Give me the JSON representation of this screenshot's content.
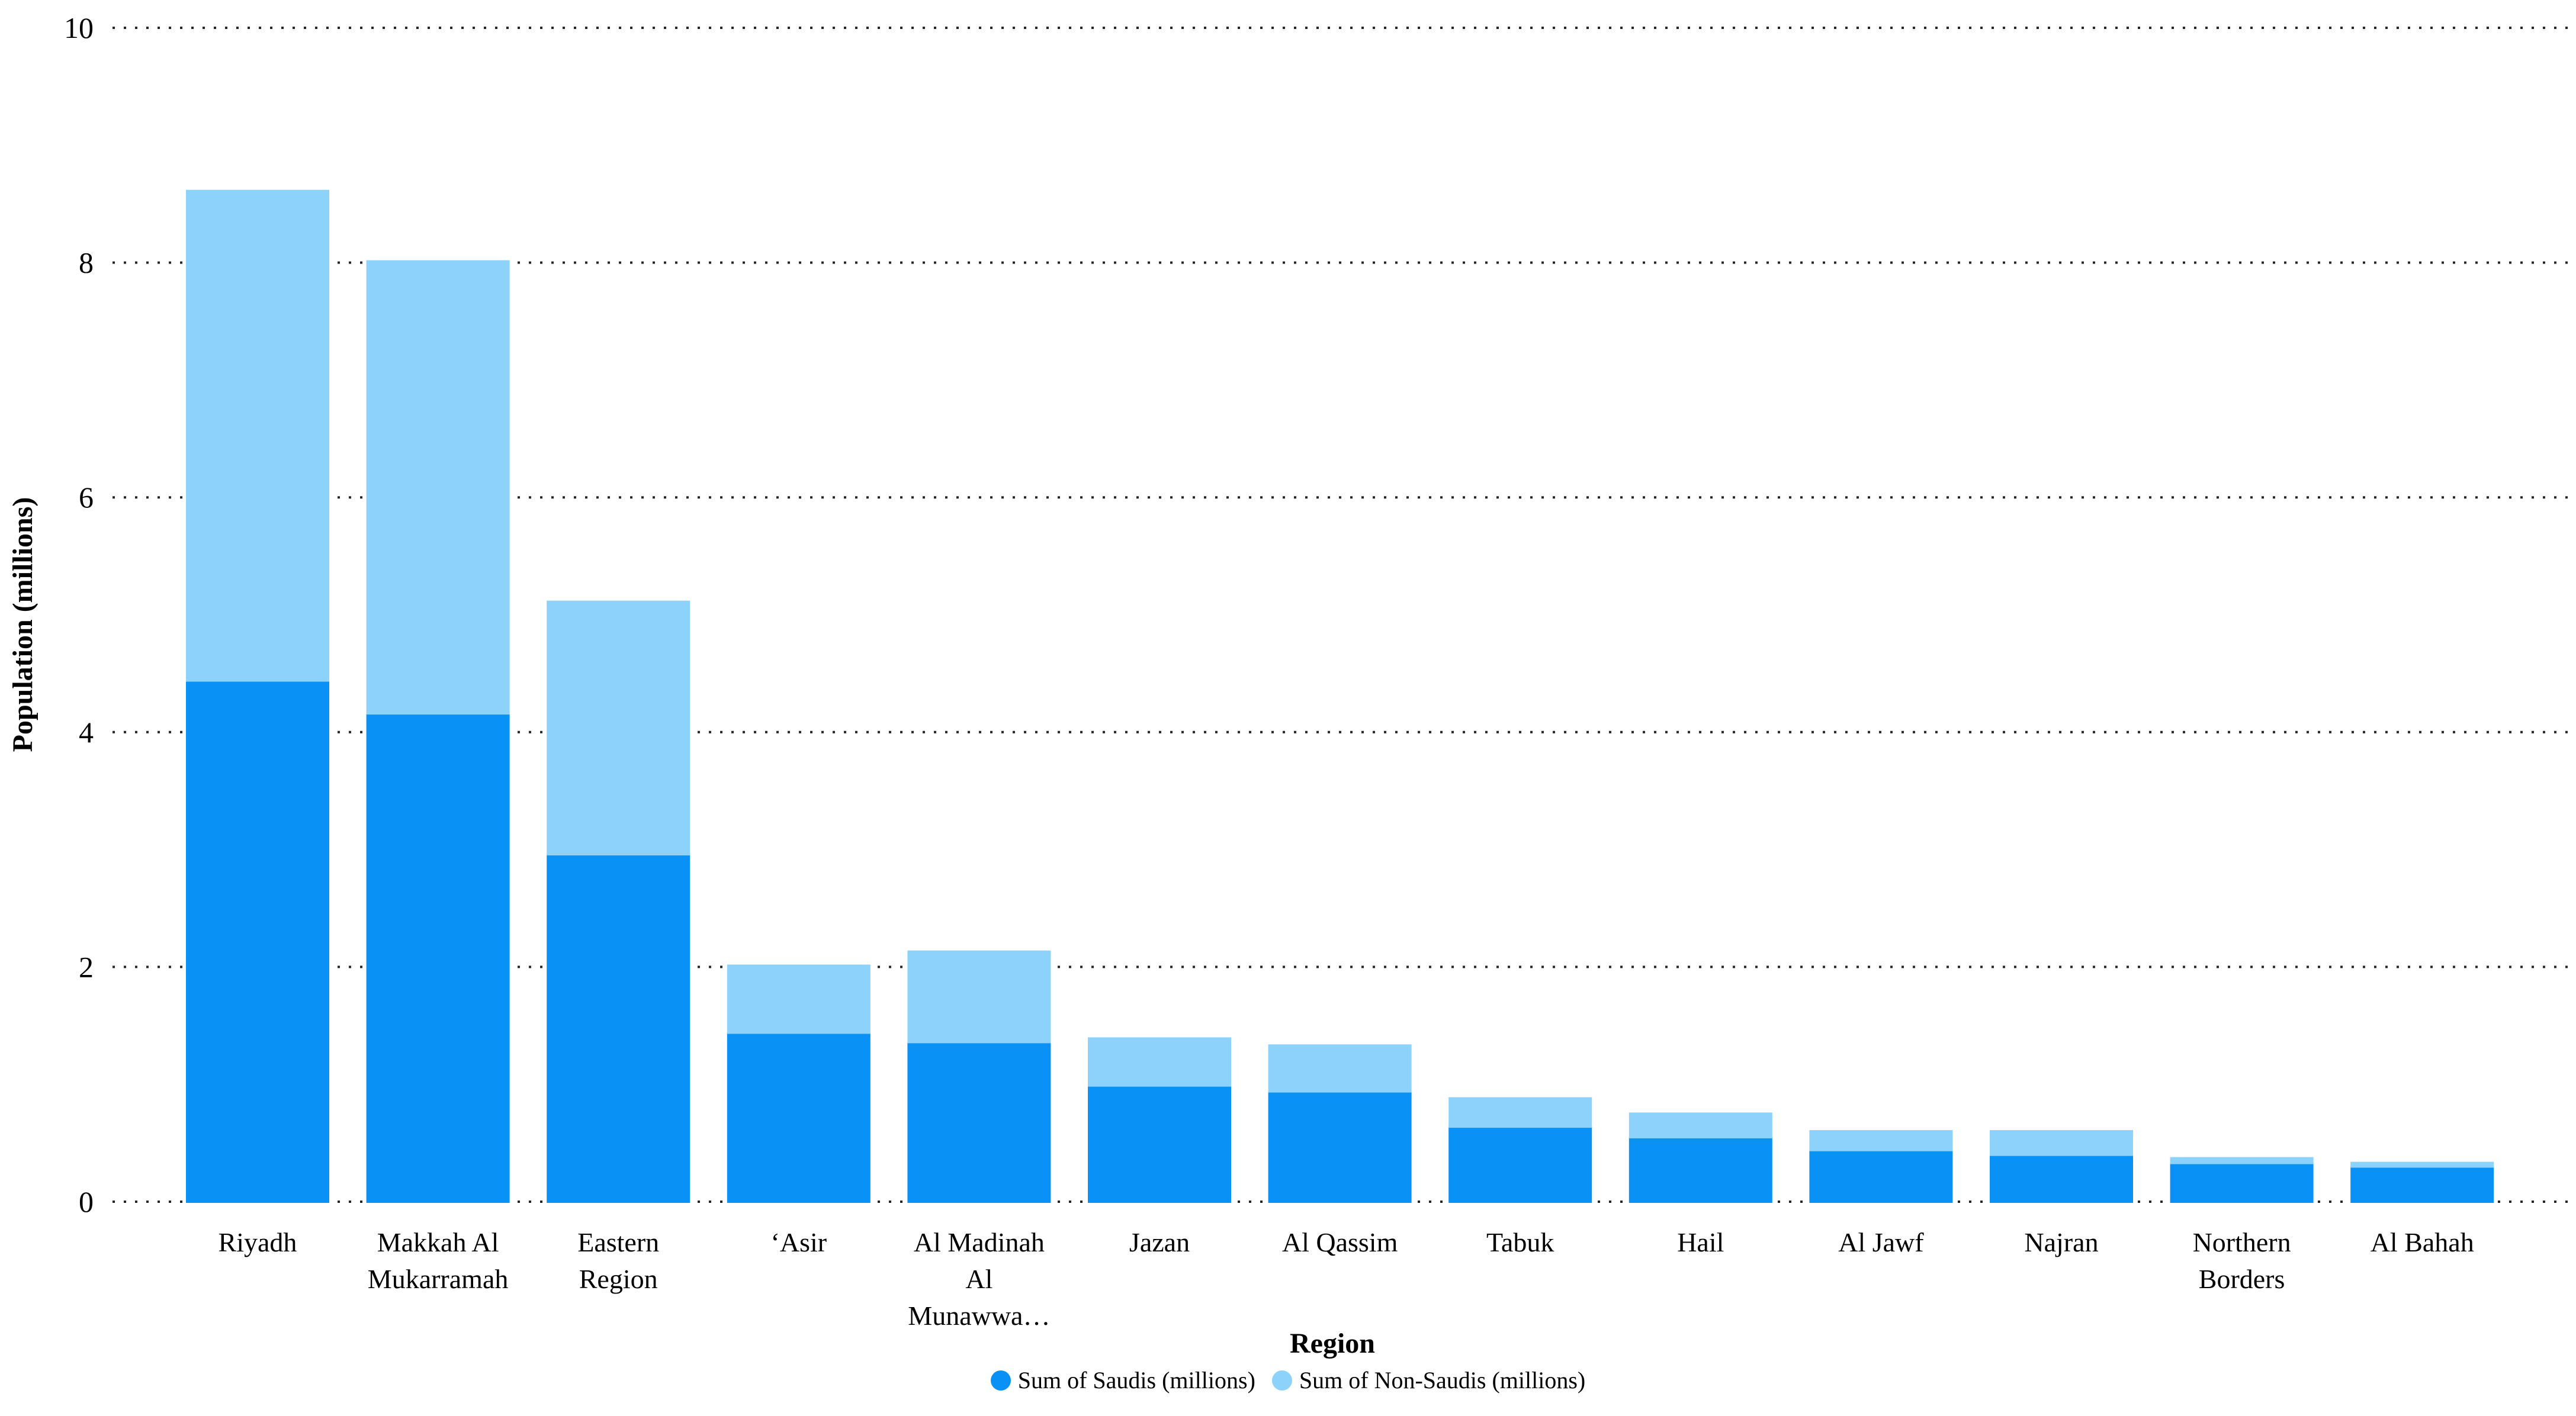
{
  "chart_data": {
    "type": "bar",
    "stacked": true,
    "xlabel": "Region",
    "ylabel": "Population (millions)",
    "ylim": [
      0,
      10
    ],
    "yticks": [
      0,
      2,
      4,
      6,
      8,
      10
    ],
    "grid": "horizontal-dotted",
    "grid_color": "#262626",
    "background": "#ffffff",
    "legend_position": "bottom-center",
    "categories": [
      "Riyadh",
      "Makkah Al Mukarramah",
      "Eastern Region",
      "‘Asir",
      "Al Madinah Al Munawwa…",
      "Jazan",
      "Al Qassim",
      "Tabuk",
      "Hail",
      "Al Jawf",
      "Najran",
      "Northern Borders",
      "Al Bahah"
    ],
    "category_label_lines": [
      [
        "Riyadh"
      ],
      [
        "Makkah Al",
        "Mukarramah"
      ],
      [
        "Eastern",
        "Region"
      ],
      [
        "‘Asir"
      ],
      [
        "Al Madinah",
        "Al",
        "Munawwa…"
      ],
      [
        "Jazan"
      ],
      [
        "Al Qassim"
      ],
      [
        "Tabuk"
      ],
      [
        "Hail"
      ],
      [
        "Al Jawf"
      ],
      [
        "Najran"
      ],
      [
        "Northern",
        "Borders"
      ],
      [
        "Al Bahah"
      ]
    ],
    "series": [
      {
        "name": "Sum of Saudis (millions)",
        "color": "#0991F5",
        "values": [
          4.44,
          4.16,
          2.96,
          1.44,
          1.36,
          0.99,
          0.94,
          0.64,
          0.55,
          0.44,
          0.4,
          0.33,
          0.3
        ]
      },
      {
        "name": "Sum of Non-Saudis (millions)",
        "color": "#8CD2FB",
        "values": [
          4.18,
          3.86,
          2.16,
          0.58,
          0.78,
          0.41,
          0.4,
          0.25,
          0.21,
          0.17,
          0.21,
          0.05,
          0.04
        ]
      }
    ]
  }
}
